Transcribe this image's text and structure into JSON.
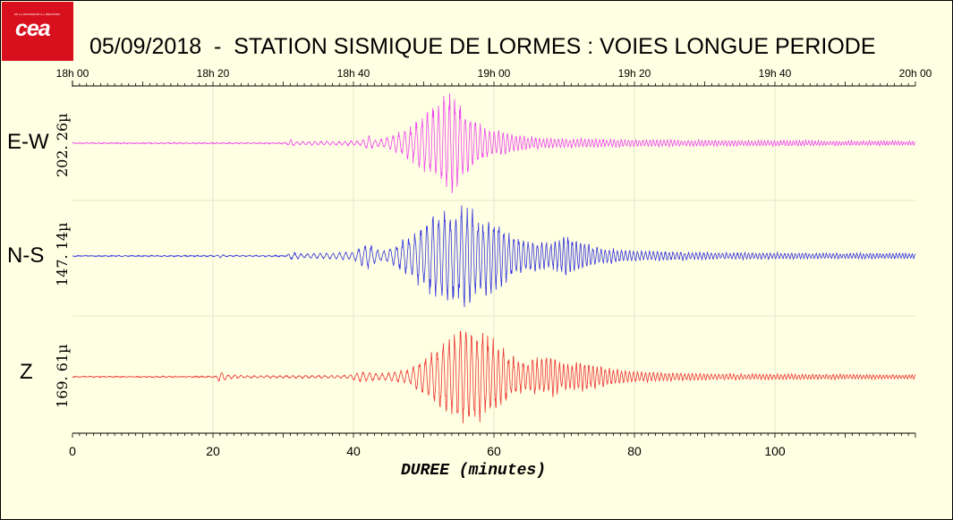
{
  "header": {
    "logo_text": "cea",
    "logo_small_text": "DE LA RECHERCHE À L'INDUSTRIE",
    "title": "05/09/2018  -  STATION SISMIQUE DE LORMES : VOIES LONGUE PERIODE"
  },
  "colors": {
    "background": "#ffffe3",
    "logo_red": "#d8101e",
    "EW": "#ee44ee",
    "NS": "#3333dd",
    "Z": "#ee3333",
    "grid": "#e6e6cc",
    "axis": "#000000"
  },
  "chart_data": {
    "type": "line",
    "title": "05/09/2018  -  STATION SISMIQUE DE LORMES : VOIES LONGUE PERIODE",
    "xlabel": "DUREE (minutes)",
    "ylabel": "",
    "xlim": [
      0,
      120
    ],
    "x_ticks": [
      0,
      20,
      40,
      60,
      80,
      100
    ],
    "top_axis": {
      "labels": [
        "18h 00",
        "18h 20",
        "18h 40",
        "19h 00",
        "19h 20",
        "19h 40",
        "20h 00"
      ],
      "positions_minutes": [
        0,
        20,
        40,
        60,
        80,
        100,
        120
      ]
    },
    "grid": true,
    "series": [
      {
        "name": "E-W",
        "scale_label": "202. 26µ",
        "peak_amplitude_microns": 202.26,
        "color": "#ee44ee",
        "envelope": [
          [
            0,
            0.005
          ],
          [
            30.5,
            0.008
          ],
          [
            31,
            0.08
          ],
          [
            32,
            0.03
          ],
          [
            41,
            0.04
          ],
          [
            42,
            0.15
          ],
          [
            43,
            0.06
          ],
          [
            45,
            0.12
          ],
          [
            48,
            0.3
          ],
          [
            50,
            0.55
          ],
          [
            52,
            0.8
          ],
          [
            53.5,
            1.0
          ],
          [
            54.5,
            0.9
          ],
          [
            56,
            0.6
          ],
          [
            58,
            0.35
          ],
          [
            60,
            0.25
          ],
          [
            62,
            0.18
          ],
          [
            65,
            0.12
          ],
          [
            68,
            0.09
          ],
          [
            75,
            0.08
          ],
          [
            85,
            0.06
          ],
          [
            100,
            0.05
          ],
          [
            120,
            0.04
          ]
        ],
        "period_minutes": [
          [
            0,
            0.9
          ],
          [
            45,
            0.85
          ],
          [
            55,
            0.75
          ],
          [
            65,
            0.55
          ],
          [
            120,
            0.4
          ]
        ]
      },
      {
        "name": "N-S",
        "scale_label": "147. 14µ",
        "peak_amplitude_microns": 147.14,
        "color": "#3333dd",
        "envelope": [
          [
            0,
            0.005
          ],
          [
            20.5,
            0.01
          ],
          [
            21,
            0.04
          ],
          [
            22,
            0.01
          ],
          [
            30.5,
            0.01
          ],
          [
            31,
            0.08
          ],
          [
            33,
            0.04
          ],
          [
            40,
            0.08
          ],
          [
            42,
            0.25
          ],
          [
            44,
            0.1
          ],
          [
            46,
            0.2
          ],
          [
            48,
            0.4
          ],
          [
            50,
            0.65
          ],
          [
            52,
            0.9
          ],
          [
            54,
            0.85
          ],
          [
            56,
            1.0
          ],
          [
            58,
            0.75
          ],
          [
            60,
            0.8
          ],
          [
            62,
            0.45
          ],
          [
            65,
            0.3
          ],
          [
            68,
            0.25
          ],
          [
            70,
            0.4
          ],
          [
            72,
            0.3
          ],
          [
            75,
            0.16
          ],
          [
            80,
            0.1
          ],
          [
            90,
            0.07
          ],
          [
            100,
            0.06
          ],
          [
            120,
            0.05
          ]
        ],
        "period_minutes": [
          [
            0,
            0.95
          ],
          [
            45,
            0.9
          ],
          [
            55,
            0.8
          ],
          [
            70,
            0.6
          ],
          [
            120,
            0.45
          ]
        ]
      },
      {
        "name": "Z",
        "scale_label": "169. 61µ",
        "peak_amplitude_microns": 169.61,
        "color": "#ee3333",
        "envelope": [
          [
            0,
            0.005
          ],
          [
            20.5,
            0.01
          ],
          [
            21,
            0.12
          ],
          [
            22,
            0.04
          ],
          [
            25,
            0.02
          ],
          [
            39,
            0.03
          ],
          [
            41,
            0.1
          ],
          [
            44,
            0.06
          ],
          [
            48,
            0.15
          ],
          [
            50,
            0.35
          ],
          [
            52,
            0.6
          ],
          [
            54,
            0.85
          ],
          [
            56,
            1.0
          ],
          [
            58,
            0.9
          ],
          [
            60,
            0.7
          ],
          [
            62,
            0.45
          ],
          [
            64,
            0.3
          ],
          [
            66,
            0.35
          ],
          [
            68,
            0.4
          ],
          [
            70,
            0.25
          ],
          [
            72,
            0.3
          ],
          [
            75,
            0.2
          ],
          [
            80,
            0.1
          ],
          [
            90,
            0.06
          ],
          [
            120,
            0.04
          ]
        ],
        "period_minutes": [
          [
            0,
            0.95
          ],
          [
            45,
            0.9
          ],
          [
            56,
            0.8
          ],
          [
            70,
            0.6
          ],
          [
            120,
            0.45
          ]
        ]
      }
    ]
  }
}
